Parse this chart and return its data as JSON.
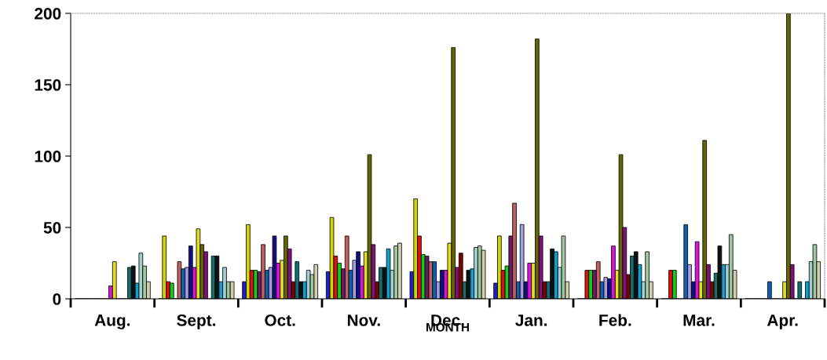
{
  "chart_data": {
    "type": "bar",
    "xlabel": "MONTH",
    "categories": [
      "Aug.",
      "Sept.",
      "Oct.",
      "Nov.",
      "Dec.",
      "Jan.",
      "Feb.",
      "Mar.",
      "Apr."
    ],
    "ylim": [
      0,
      200
    ],
    "yticks": [
      0,
      50,
      100,
      150,
      200
    ],
    "grid": false,
    "legend": false,
    "series": [
      {
        "color": "#1f1fd0",
        "values": [
          0,
          0,
          12,
          19,
          19,
          11,
          0,
          0,
          0
        ]
      },
      {
        "color": "#d4d400",
        "values": [
          0,
          44,
          52,
          57,
          70,
          44,
          0,
          0,
          0
        ]
      },
      {
        "color": "#e01010",
        "values": [
          0,
          12,
          20,
          30,
          44,
          20,
          20,
          20,
          0
        ]
      },
      {
        "color": "#10d010",
        "values": [
          0,
          11,
          20,
          25,
          31,
          23,
          20,
          20,
          0
        ]
      },
      {
        "color": "#6a1a6a",
        "values": [
          0,
          0,
          19,
          21,
          30,
          44,
          20,
          0,
          0
        ]
      },
      {
        "color": "#c06060",
        "values": [
          0,
          26,
          38,
          44,
          26,
          67,
          26,
          0,
          0
        ]
      },
      {
        "color": "#1060b0",
        "values": [
          0,
          21,
          20,
          20,
          26,
          12,
          12,
          52,
          12
        ]
      },
      {
        "color": "#a0a0e0",
        "values": [
          0,
          22,
          22,
          27,
          12,
          52,
          15,
          24,
          0
        ]
      },
      {
        "color": "#101080",
        "values": [
          0,
          37,
          44,
          33,
          20,
          12,
          14,
          12,
          0
        ]
      },
      {
        "color": "#e010e0",
        "values": [
          9,
          22,
          25,
          23,
          20,
          25,
          37,
          40,
          0
        ]
      },
      {
        "color": "#e0e020",
        "values": [
          26,
          49,
          27,
          33,
          39,
          25,
          20,
          12,
          12
        ]
      },
      {
        "color": "#666600",
        "values": [
          0,
          38,
          44,
          101,
          176,
          182,
          101,
          111,
          200
        ]
      },
      {
        "color": "#801080",
        "values": [
          0,
          33,
          35,
          38,
          22,
          44,
          50,
          24,
          24
        ]
      },
      {
        "color": "#800000",
        "values": [
          0,
          0,
          12,
          12,
          32,
          12,
          17,
          12,
          0
        ]
      },
      {
        "color": "#107070",
        "values": [
          22,
          30,
          26,
          22,
          12,
          12,
          30,
          18,
          12
        ]
      },
      {
        "color": "#101010",
        "values": [
          23,
          30,
          12,
          22,
          20,
          35,
          33,
          37,
          0
        ]
      },
      {
        "color": "#10a0d0",
        "values": [
          11,
          12,
          12,
          35,
          21,
          33,
          24,
          24,
          12
        ]
      },
      {
        "color": "#a0d0d0",
        "values": [
          32,
          22,
          20,
          20,
          36,
          22,
          12,
          24,
          26
        ]
      },
      {
        "color": "#a0c8a0",
        "values": [
          23,
          12,
          17,
          37,
          37,
          44,
          33,
          45,
          38
        ]
      },
      {
        "color": "#d0d0b0",
        "values": [
          12,
          12,
          24,
          39,
          34,
          12,
          12,
          20,
          26
        ]
      }
    ]
  }
}
